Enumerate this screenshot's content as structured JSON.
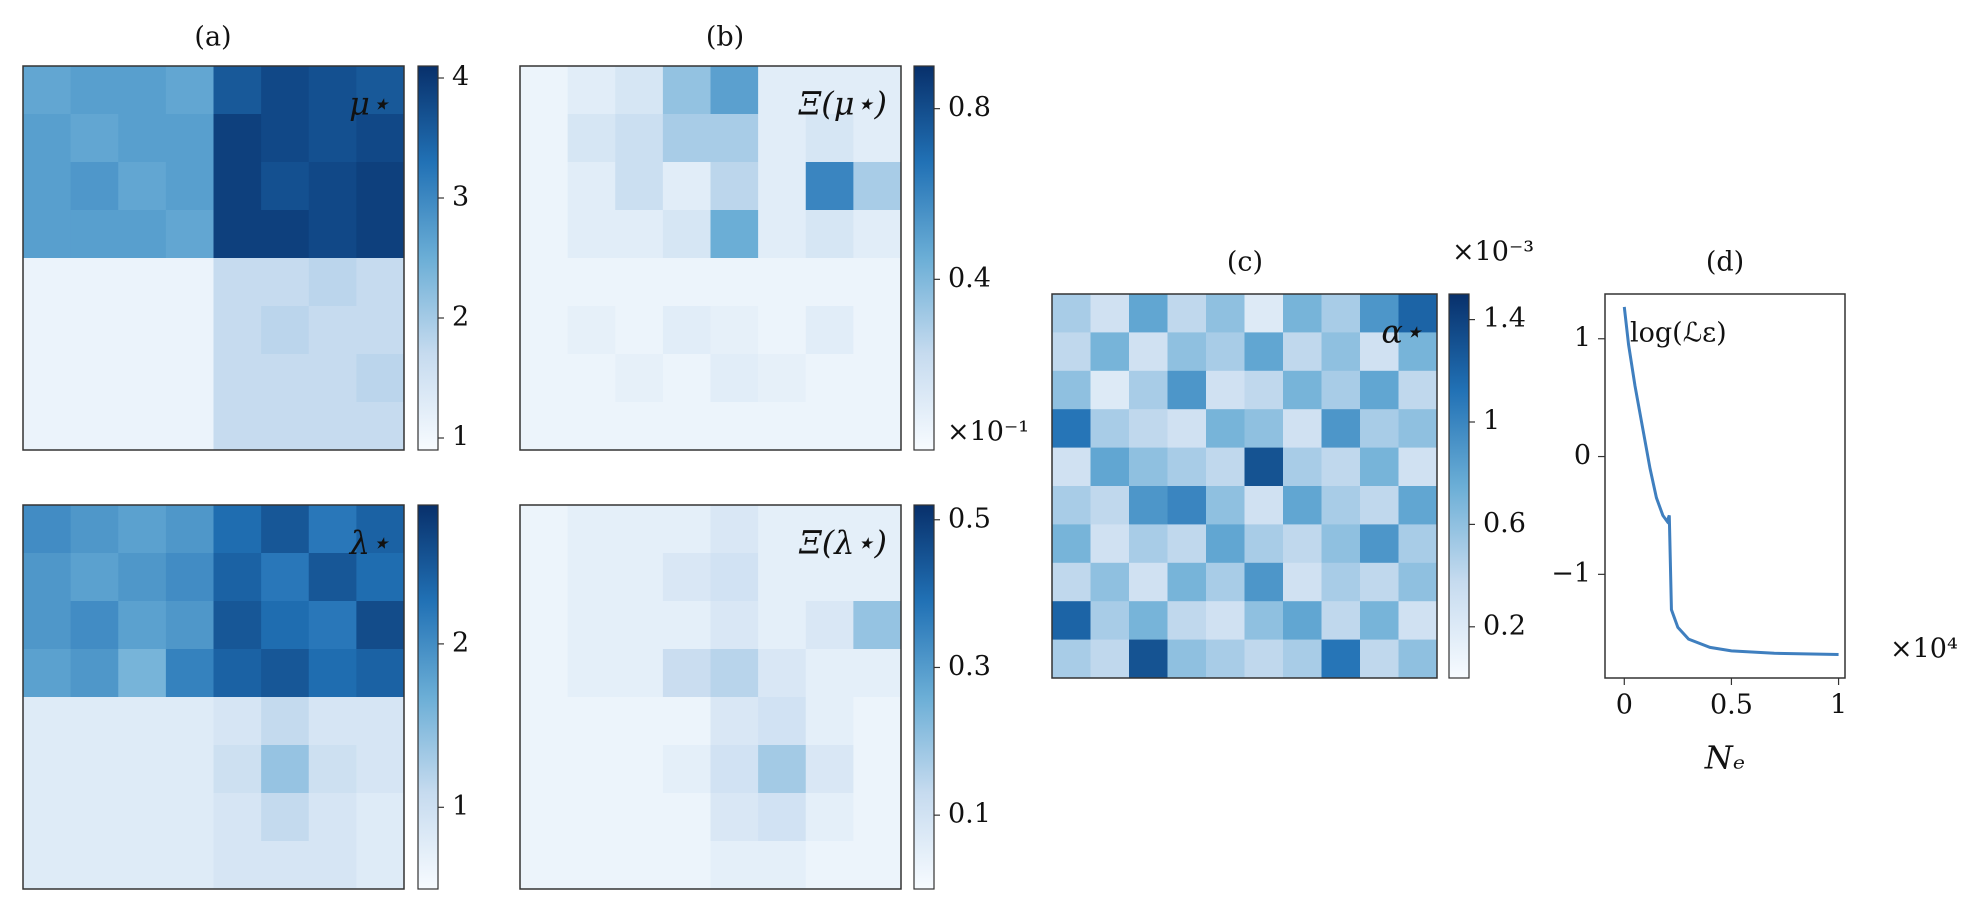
{
  "chart_data": [
    {
      "type": "heatmap",
      "title": "(a)",
      "annotation": "μ⋆",
      "z": [
        [
          2.6,
          2.7,
          2.7,
          2.6,
          3.6,
          3.8,
          3.7,
          3.6
        ],
        [
          2.7,
          2.6,
          2.7,
          2.7,
          3.9,
          3.8,
          3.7,
          3.8
        ],
        [
          2.7,
          2.8,
          2.6,
          2.7,
          3.9,
          3.7,
          3.8,
          3.9
        ],
        [
          2.7,
          2.7,
          2.7,
          2.6,
          3.9,
          3.9,
          3.8,
          3.9
        ],
        [
          1.1,
          1.1,
          1.1,
          1.1,
          1.7,
          1.7,
          1.8,
          1.7
        ],
        [
          1.1,
          1.1,
          1.1,
          1.1,
          1.7,
          1.8,
          1.7,
          1.7
        ],
        [
          1.1,
          1.1,
          1.1,
          1.1,
          1.7,
          1.7,
          1.7,
          1.8
        ],
        [
          1.1,
          1.1,
          1.1,
          1.1,
          1.7,
          1.7,
          1.7,
          1.7
        ]
      ],
      "clim": [
        0.9,
        4.1
      ],
      "cticks": [
        1,
        2,
        3,
        4
      ],
      "colors": [
        "#f7fbff",
        "#c6dbef",
        "#6baed6",
        "#2171b5",
        "#08306b"
      ]
    },
    {
      "type": "heatmap",
      "annotation": "λ⋆",
      "z": [
        [
          2.0,
          1.9,
          1.8,
          1.9,
          2.3,
          2.5,
          2.2,
          2.4
        ],
        [
          1.9,
          1.8,
          1.9,
          2.0,
          2.4,
          2.2,
          2.5,
          2.3
        ],
        [
          1.9,
          2.0,
          1.8,
          1.9,
          2.5,
          2.3,
          2.2,
          2.6
        ],
        [
          1.8,
          1.9,
          1.6,
          2.1,
          2.4,
          2.5,
          2.3,
          2.4
        ],
        [
          0.8,
          0.8,
          0.8,
          0.8,
          0.9,
          1.1,
          0.9,
          0.9
        ],
        [
          0.8,
          0.8,
          0.8,
          0.8,
          1.0,
          1.4,
          1.0,
          0.9
        ],
        [
          0.8,
          0.8,
          0.8,
          0.8,
          0.9,
          1.1,
          0.9,
          0.8
        ],
        [
          0.8,
          0.8,
          0.8,
          0.8,
          0.9,
          0.9,
          0.9,
          0.8
        ]
      ],
      "clim": [
        0.5,
        2.85
      ],
      "cticks": [
        1,
        2
      ],
      "colors": [
        "#f7fbff",
        "#c6dbef",
        "#6baed6",
        "#2171b5",
        "#08306b"
      ]
    },
    {
      "type": "heatmap",
      "title": "(b)",
      "annotation": "Ξ(μ⋆)",
      "colorbar_offset": "×10⁻¹",
      "z": [
        [
          0.05,
          0.1,
          0.15,
          0.35,
          0.5,
          0.1,
          0.1,
          0.1
        ],
        [
          0.05,
          0.15,
          0.2,
          0.3,
          0.3,
          0.1,
          0.15,
          0.1
        ],
        [
          0.05,
          0.1,
          0.2,
          0.1,
          0.25,
          0.1,
          0.6,
          0.3
        ],
        [
          0.05,
          0.1,
          0.1,
          0.15,
          0.45,
          0.1,
          0.15,
          0.1
        ],
        [
          0.05,
          0.05,
          0.05,
          0.05,
          0.05,
          0.05,
          0.05,
          0.05
        ],
        [
          0.05,
          0.08,
          0.05,
          0.1,
          0.08,
          0.05,
          0.1,
          0.05
        ],
        [
          0.05,
          0.05,
          0.08,
          0.05,
          0.1,
          0.08,
          0.05,
          0.05
        ],
        [
          0.05,
          0.05,
          0.05,
          0.05,
          0.05,
          0.05,
          0.05,
          0.05
        ]
      ],
      "clim": [
        0,
        0.9
      ],
      "cticks": [
        0.4,
        0.8
      ],
      "colors": [
        "#f7fbff",
        "#c6dbef",
        "#6baed6",
        "#2171b5",
        "#08306b"
      ]
    },
    {
      "type": "heatmap",
      "annotation": "Ξ(λ⋆)",
      "z": [
        [
          0.03,
          0.05,
          0.05,
          0.05,
          0.08,
          0.05,
          0.05,
          0.05
        ],
        [
          0.03,
          0.05,
          0.05,
          0.08,
          0.1,
          0.05,
          0.05,
          0.05
        ],
        [
          0.03,
          0.05,
          0.05,
          0.05,
          0.08,
          0.05,
          0.08,
          0.2
        ],
        [
          0.03,
          0.05,
          0.05,
          0.12,
          0.15,
          0.08,
          0.05,
          0.05
        ],
        [
          0.03,
          0.03,
          0.03,
          0.03,
          0.08,
          0.1,
          0.05,
          0.03
        ],
        [
          0.03,
          0.03,
          0.03,
          0.05,
          0.1,
          0.18,
          0.08,
          0.03
        ],
        [
          0.03,
          0.03,
          0.03,
          0.03,
          0.08,
          0.1,
          0.05,
          0.03
        ],
        [
          0.03,
          0.03,
          0.03,
          0.03,
          0.05,
          0.05,
          0.03,
          0.03
        ]
      ],
      "clim": [
        0,
        0.52
      ],
      "cticks": [
        0.1,
        0.3,
        0.5
      ],
      "colors": [
        "#f7fbff",
        "#c6dbef",
        "#6baed6",
        "#2171b5",
        "#08306b"
      ]
    },
    {
      "type": "heatmap",
      "title": "(c)",
      "annotation": "α⋆",
      "colorbar_offset": "×10⁻³",
      "z": [
        [
          0.5,
          0.3,
          0.8,
          0.4,
          0.6,
          0.2,
          0.7,
          0.5,
          0.9,
          1.2
        ],
        [
          0.4,
          0.7,
          0.3,
          0.6,
          0.5,
          0.8,
          0.4,
          0.6,
          0.3,
          0.7
        ],
        [
          0.6,
          0.2,
          0.5,
          0.9,
          0.3,
          0.4,
          0.7,
          0.5,
          0.8,
          0.4
        ],
        [
          1.1,
          0.5,
          0.4,
          0.3,
          0.7,
          0.6,
          0.3,
          0.9,
          0.5,
          0.6
        ],
        [
          0.3,
          0.8,
          0.6,
          0.5,
          0.4,
          1.3,
          0.5,
          0.4,
          0.7,
          0.3
        ],
        [
          0.5,
          0.4,
          0.9,
          1.0,
          0.6,
          0.3,
          0.8,
          0.5,
          0.4,
          0.8
        ],
        [
          0.7,
          0.3,
          0.5,
          0.4,
          0.8,
          0.5,
          0.4,
          0.6,
          0.9,
          0.5
        ],
        [
          0.4,
          0.6,
          0.3,
          0.7,
          0.5,
          0.9,
          0.3,
          0.5,
          0.4,
          0.6
        ],
        [
          1.2,
          0.5,
          0.7,
          0.4,
          0.3,
          0.6,
          0.8,
          0.4,
          0.7,
          0.3
        ],
        [
          0.5,
          0.4,
          1.3,
          0.6,
          0.5,
          0.4,
          0.5,
          1.1,
          0.4,
          0.6
        ]
      ],
      "clim": [
        0,
        1.5
      ],
      "cticks": [
        0.2,
        0.6,
        1,
        1.4
      ],
      "colors": [
        "#f7fbff",
        "#c6dbef",
        "#6baed6",
        "#2171b5",
        "#08306b"
      ]
    },
    {
      "type": "line",
      "title": "(d)",
      "annotation": "log(ℒε)",
      "x_label": "Nₑ",
      "x_offset": "×10⁴",
      "series": [
        {
          "color": "#3f7fbf",
          "x": [
            0,
            0.02,
            0.05,
            0.08,
            0.1,
            0.12,
            0.15,
            0.18,
            0.2,
            0.21,
            0.22,
            0.25,
            0.3,
            0.4,
            0.5,
            0.7,
            1.0
          ],
          "values": [
            1.27,
            0.95,
            0.6,
            0.3,
            0.1,
            -0.1,
            -0.35,
            -0.5,
            -0.55,
            -0.5,
            -1.3,
            -1.45,
            -1.55,
            -1.62,
            -1.65,
            -1.67,
            -1.68
          ]
        }
      ],
      "xlim": [
        -0.09,
        1.03
      ],
      "ylim": [
        -1.88,
        1.38
      ],
      "xticks": [
        0,
        0.5,
        1
      ],
      "yticks": [
        {
          "value": -1,
          "label": "−1"
        },
        0,
        1
      ]
    }
  ]
}
